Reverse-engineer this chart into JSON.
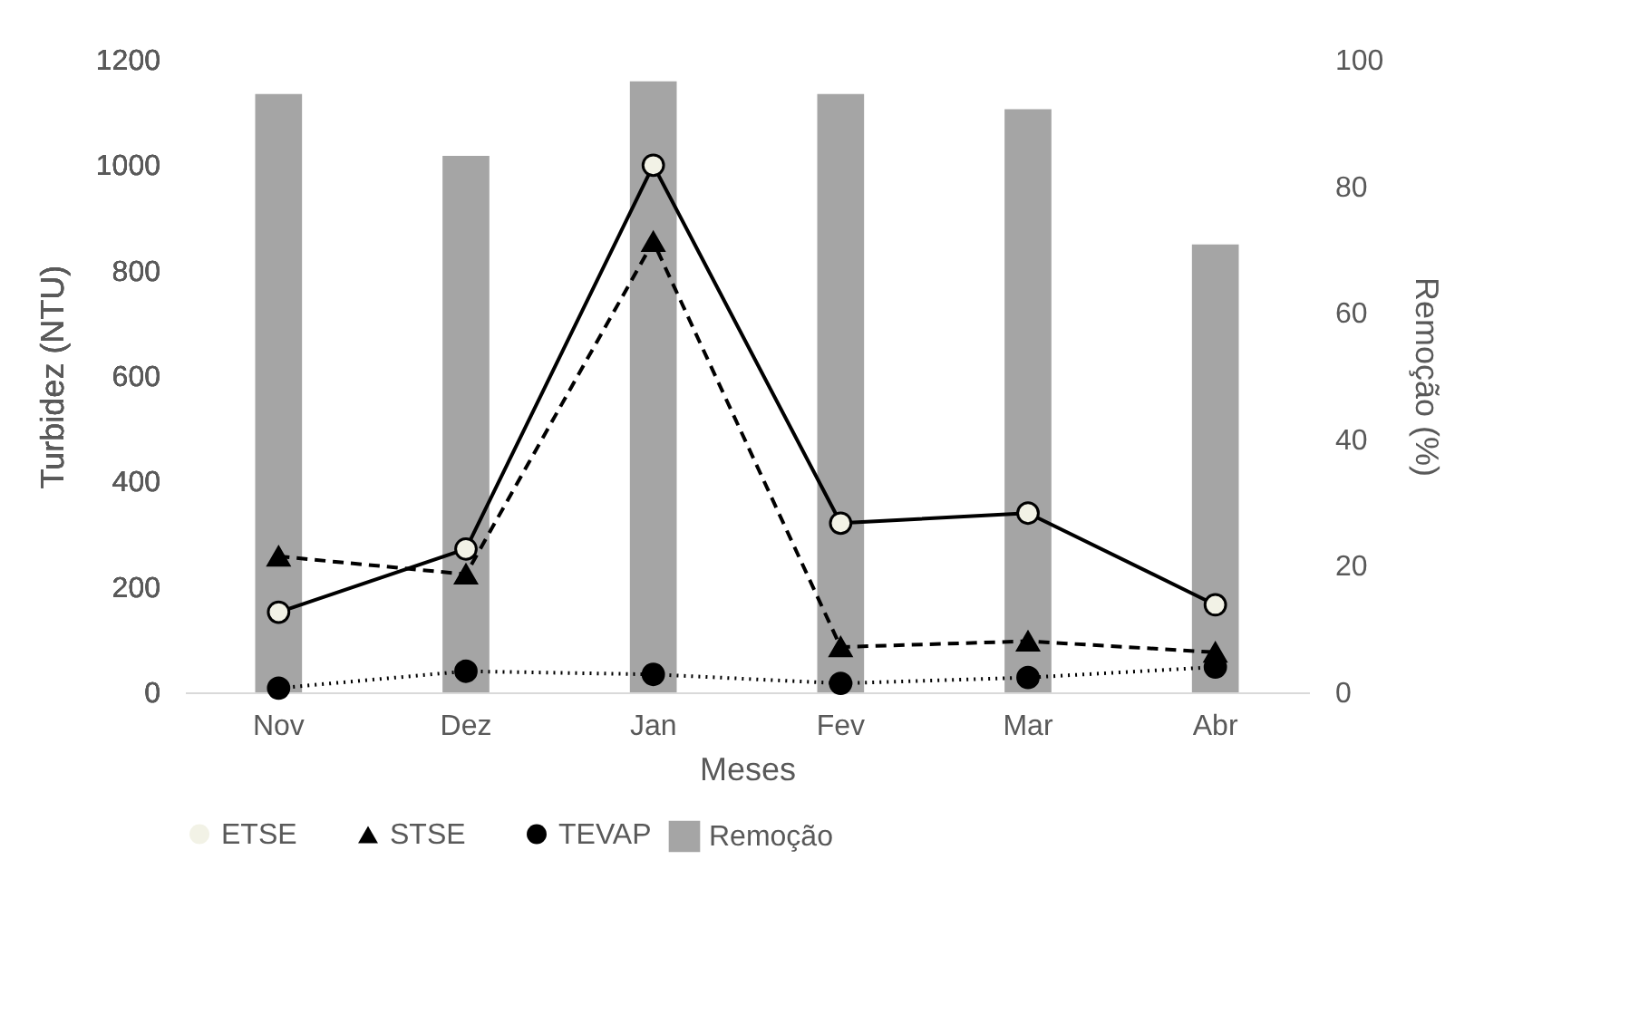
{
  "chart_data": {
    "type": "line",
    "xlabel": "Meses",
    "ylabel": "Turbidez (NTU)",
    "y2label": "Remoção (%)",
    "categories": [
      "Nov",
      "Dez",
      "Jan",
      "Fev",
      "Mar",
      "Abr"
    ],
    "ylim": [
      0,
      1200
    ],
    "yticks": [
      0,
      200,
      400,
      600,
      800,
      1000,
      1200
    ],
    "y2lim": [
      0,
      100
    ],
    "y2ticks": [
      0,
      20,
      40,
      60,
      80,
      100
    ],
    "legend": "bottom",
    "series": [
      {
        "name": "Remoção",
        "type": "bar",
        "axis": "y2",
        "color": "#a5a5a5",
        "values": [
          94.6,
          84.8,
          96.6,
          94.6,
          92.2,
          70.8
        ]
      },
      {
        "name": "ETSE",
        "color": "#000000",
        "marker": "circle",
        "line_style": "solid",
        "values": [
          152,
          272,
          1000,
          321,
          340,
          166
        ]
      },
      {
        "name": "STSE",
        "color": "#000000",
        "marker": "triangle",
        "line_style": "dashed",
        "values": [
          258,
          224,
          855,
          86,
          97,
          76
        ]
      },
      {
        "name": "TEVAP",
        "color": "#000000",
        "marker": "circle",
        "line_style": "dotted",
        "values": [
          8,
          40,
          34,
          17,
          28,
          48
        ]
      }
    ]
  }
}
